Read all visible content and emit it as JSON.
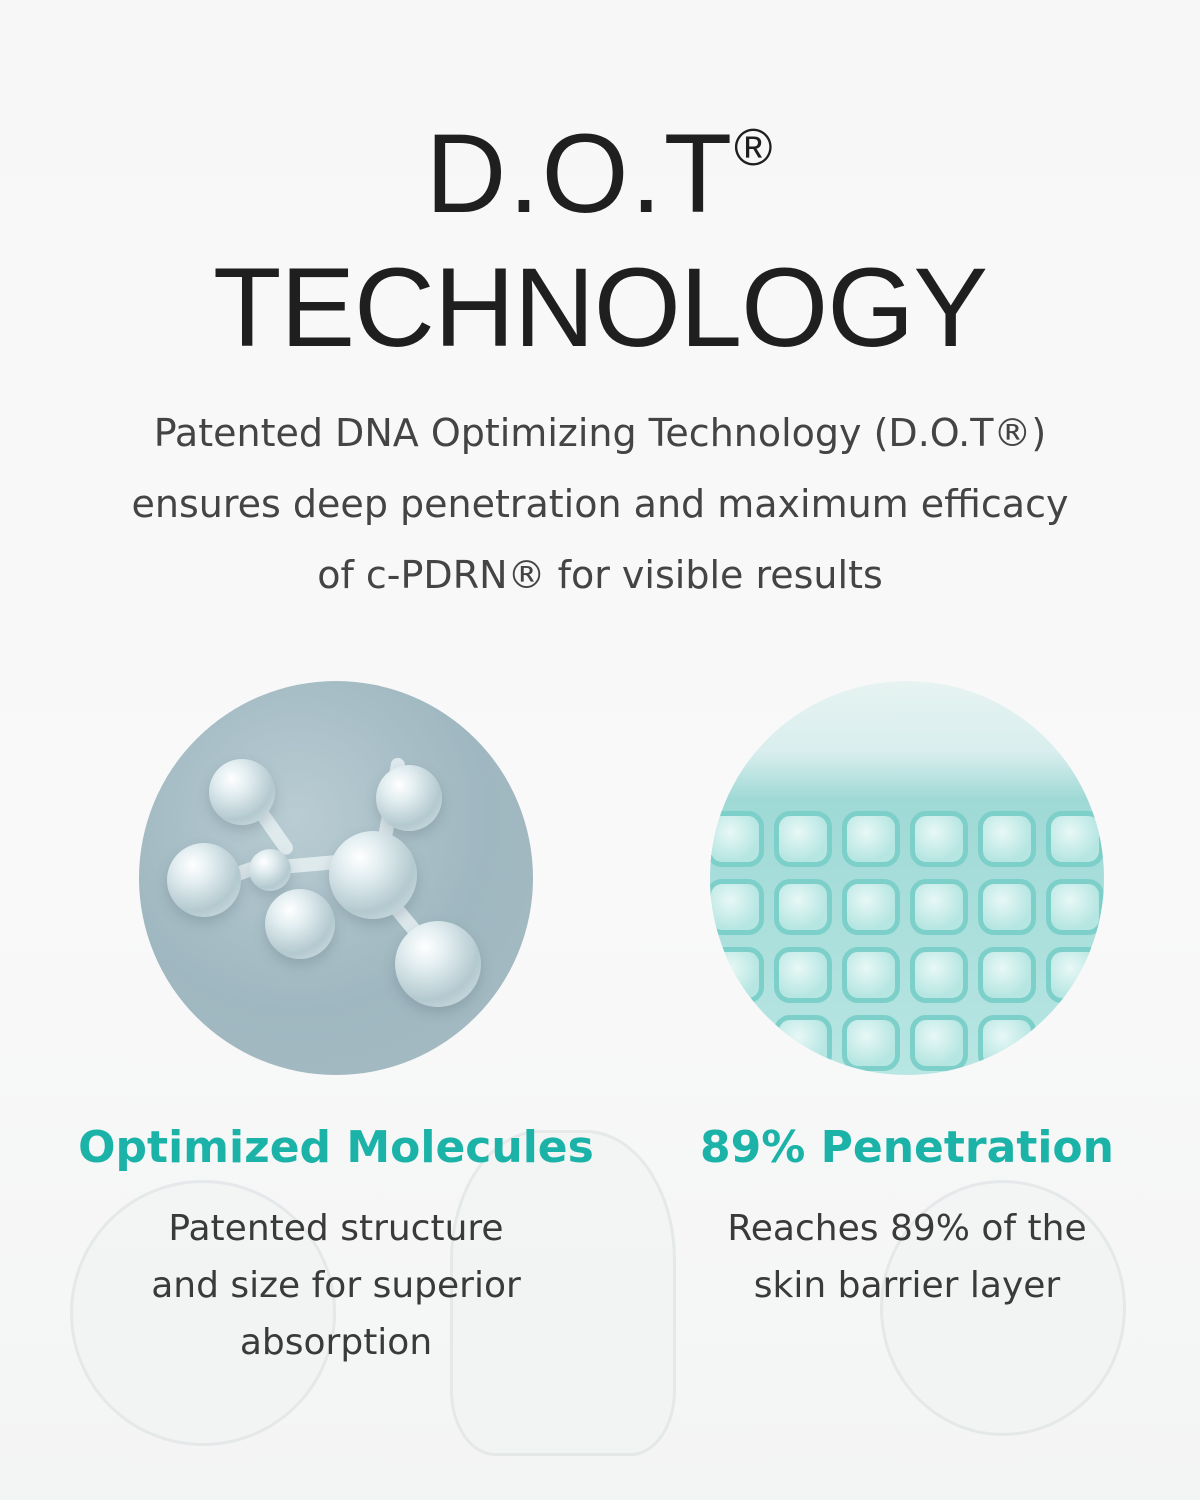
{
  "header": {
    "title_line1": "D.O.T",
    "registered_mark": "®",
    "title_line2": "TECHNOLOGY",
    "subtitle": "Patented DNA Optimizing Technology (D.O.T®)\nensures deep penetration and maximum efficacy\nof c-PDRN® for visible results"
  },
  "features": [
    {
      "image": "molecule-image",
      "title": "Optimized Molecules",
      "body": "Patented structure\nand size for superior\nabsorption"
    },
    {
      "image": "cell-grid-image",
      "title": "89% Penetration",
      "body": "Reaches 89% of the\nskin barrier layer"
    }
  ],
  "colors": {
    "accent": "#1bb3a8",
    "title": "#1f1f1f",
    "text": "#444444"
  }
}
